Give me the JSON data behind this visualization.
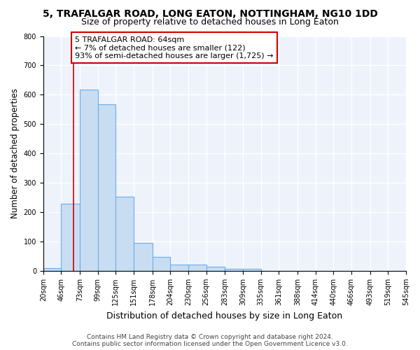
{
  "title": "5, TRAFALGAR ROAD, LONG EATON, NOTTINGHAM, NG10 1DD",
  "subtitle": "Size of property relative to detached houses in Long Eaton",
  "xlabel": "Distribution of detached houses by size in Long Eaton",
  "ylabel": "Number of detached properties",
  "bin_edges": [
    20,
    46,
    73,
    99,
    125,
    151,
    178,
    204,
    230,
    256,
    283,
    309,
    335,
    361,
    388,
    414,
    440,
    466,
    493,
    519,
    545
  ],
  "bar_heights": [
    10,
    228,
    617,
    568,
    253,
    95,
    48,
    22,
    22,
    15,
    8,
    8,
    0,
    0,
    0,
    0,
    0,
    0,
    0,
    0
  ],
  "bar_color": "#c9ddf2",
  "bar_edge_color": "#6aaee8",
  "bg_color": "#edf2fb",
  "grid_color": "#ffffff",
  "annotation_text": "5 TRAFALGAR ROAD: 64sqm\n← 7% of detached houses are smaller (122)\n93% of semi-detached houses are larger (1,725) →",
  "annotation_box_facecolor": "#ffffff",
  "annotation_box_edgecolor": "#cc0000",
  "property_line_x": 64,
  "property_line_color": "#cc0000",
  "ylim": [
    0,
    800
  ],
  "yticks": [
    0,
    100,
    200,
    300,
    400,
    500,
    600,
    700,
    800
  ],
  "footer_line1": "Contains HM Land Registry data © Crown copyright and database right 2024.",
  "footer_line2": "Contains public sector information licensed under the Open Government Licence v3.0.",
  "title_fontsize": 10,
  "subtitle_fontsize": 9,
  "xlabel_fontsize": 9,
  "ylabel_fontsize": 8.5,
  "tick_fontsize": 7,
  "annotation_fontsize": 8,
  "footer_fontsize": 6.5
}
